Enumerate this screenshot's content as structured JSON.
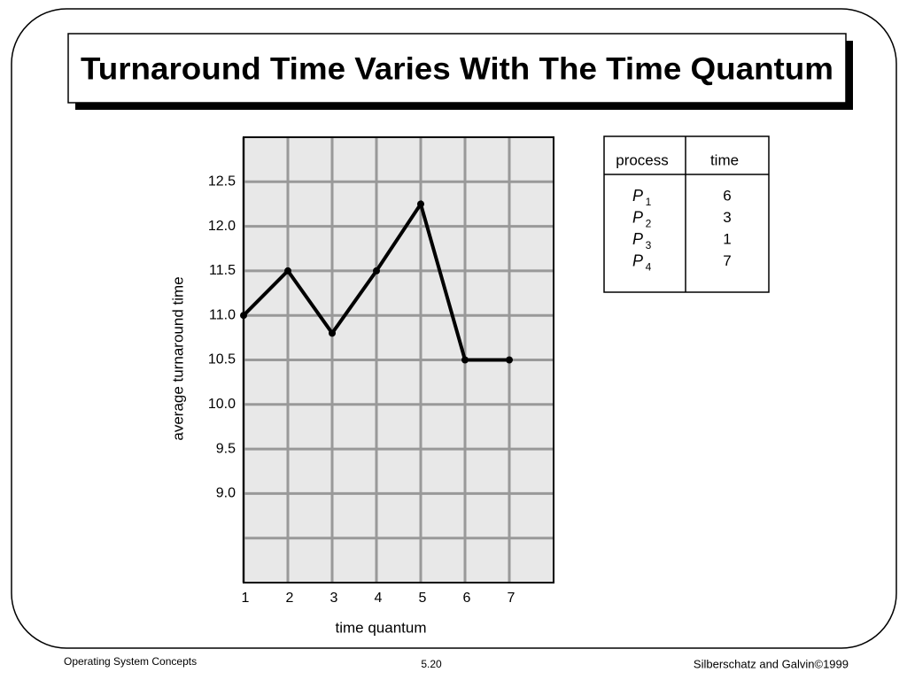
{
  "slide": {
    "title": "Turnaround Time Varies With The Time Quantum",
    "footer": {
      "left": "Operating System Concepts",
      "center": "5.20",
      "right": "Silberschatz and Galvin©1999"
    }
  },
  "chart_data": {
    "type": "line",
    "x_label": "time quantum",
    "y_label": "average turnaround time",
    "x": [
      1,
      2,
      3,
      4,
      5,
      6,
      7
    ],
    "values": [
      11.0,
      11.5,
      10.8,
      11.5,
      12.25,
      10.5,
      10.5
    ],
    "color": "#000000",
    "xlim": [
      1,
      8
    ],
    "xticks": [
      1,
      2,
      3,
      4,
      5,
      6,
      7
    ],
    "ylim": [
      8,
      13
    ],
    "yticks": [
      {
        "value": 9,
        "label": "9.0"
      },
      {
        "value": 9.5,
        "label": "9.5"
      },
      {
        "value": 10,
        "label": "10.0"
      },
      {
        "value": 10.5,
        "label": "10.5"
      },
      {
        "value": 11,
        "label": "11.0"
      },
      {
        "value": 11.5,
        "label": "11.5"
      },
      {
        "value": 12,
        "label": "12.0"
      },
      {
        "value": 12.5,
        "label": "12.5"
      }
    ],
    "minor_yticks": [
      8.5
    ],
    "grid": true
  },
  "table": {
    "header": [
      "process",
      "time"
    ],
    "rows": [
      [
        {
          "letter": "P",
          "index": "1"
        },
        "6"
      ],
      [
        {
          "letter": "P",
          "index": "2"
        },
        "3"
      ],
      [
        {
          "letter": "P",
          "index": "3"
        },
        "1"
      ],
      [
        {
          "letter": "P",
          "index": "4"
        },
        "7"
      ]
    ]
  }
}
